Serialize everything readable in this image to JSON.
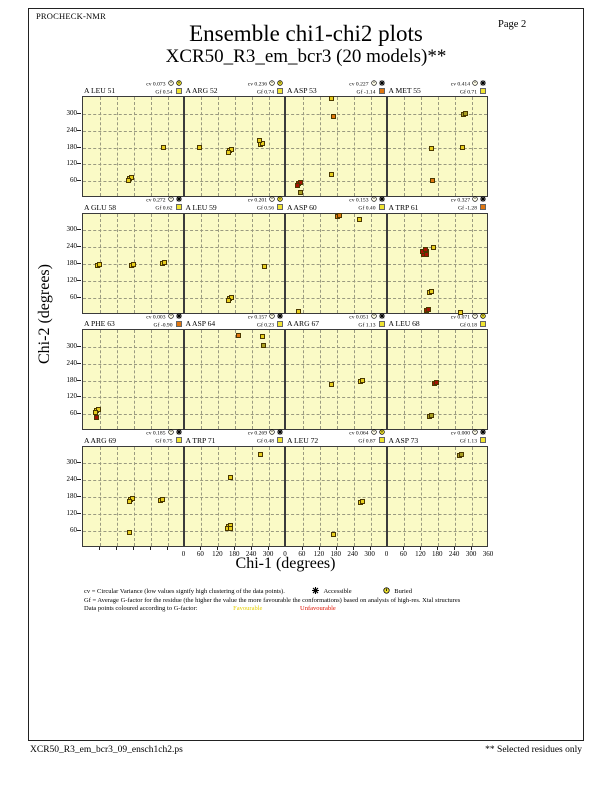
{
  "header": {
    "app_name": "PROCHECK-NMR",
    "title": "Ensemble chi1-chi2 plots",
    "subtitle": "XCR50_R3_em_bcr3 (20 models)**",
    "page_label": "Page  2"
  },
  "axes": {
    "x_title": "Chi-1 (degrees)",
    "y_title": "Chi-2 (degrees)",
    "x_ticks": [
      0,
      60,
      120,
      180,
      240,
      300,
      360
    ],
    "y_ticks": [
      60,
      120,
      180,
      240,
      300
    ],
    "x_range": [
      0,
      360
    ],
    "y_range": [
      0,
      360
    ],
    "grid_step": 60,
    "grid_style": "dashed"
  },
  "colors": {
    "plot_bg": "#fafac6",
    "favourable": "#e8cf1e",
    "olive": "#a9a023",
    "unfav_orange": "#e0760f",
    "unfav_red": "#a51204",
    "gf_square_favourable": "#f0e431",
    "gf_square_unfavourable": "#e0760f",
    "grid": "#9a9a80",
    "frame": "#3b3b3b"
  },
  "legend": {
    "line1": "cv = Circular Variance (low values signify high clustering of the data points).",
    "accessible_label": "Accessible",
    "buried_label": "Buried",
    "line2": "Gf = Average G-factor for the residue (the higher the value the more favourable the conformations) based on analysis of high-res. Xtal structures",
    "line3": "Data points coloured according to G-factor:",
    "favourable_label": "Favourable",
    "unfavourable_label": "Unfavourable"
  },
  "footer": {
    "left": "XCR50_R3_em_bcr3_09_ensch1ch2.ps",
    "right": "** Selected residues only"
  },
  "chart_data": [
    {
      "type": "scatter",
      "residue": "A LEU 51",
      "cv": "0.073",
      "gf": "0.54",
      "gf_status": "favourable",
      "access": "buried",
      "points": [
        [
          166,
          68,
          "y",
          3
        ],
        [
          286,
          179,
          "y",
          1
        ]
      ]
    },
    {
      "type": "scatter",
      "residue": "A ARG 52",
      "cv": "0.236",
      "gf": "0.74",
      "gf_status": "favourable",
      "access": "buried",
      "points": [
        [
          52,
          180,
          "y",
          1
        ],
        [
          159,
          170,
          "y",
          3
        ],
        [
          268,
          190,
          "y",
          2
        ],
        [
          266,
          205,
          "y",
          1
        ]
      ]
    },
    {
      "type": "scatter",
      "residue": "A ASP 53",
      "cv": "0.227",
      "gf": "-1.14",
      "gf_status": "unfavourable",
      "access": "accessible",
      "points": [
        [
          45,
          50,
          "r",
          3
        ],
        [
          53,
          20,
          "g",
          1
        ],
        [
          162,
          84,
          "y",
          1
        ],
        [
          168,
          290,
          "o",
          1
        ],
        [
          160,
          354,
          "y",
          1
        ]
      ]
    },
    {
      "type": "scatter",
      "residue": "A MET 55",
      "cv": "0.414",
      "gf": "0.71",
      "gf_status": "favourable",
      "access": "accessible",
      "points": [
        [
          270,
          296,
          "g",
          2
        ],
        [
          155,
          176,
          "y",
          1
        ],
        [
          265,
          179,
          "y",
          1
        ],
        [
          161,
          64,
          "o",
          1
        ]
      ]
    },
    {
      "type": "scatter",
      "residue": "A GLU 58",
      "cv": "0.272",
      "gf": "0.62",
      "gf_status": "favourable",
      "access": "accessible",
      "points": [
        [
          53,
          176,
          "y",
          2
        ],
        [
          172,
          176,
          "y",
          2
        ],
        [
          283,
          182,
          "y",
          2
        ]
      ]
    },
    {
      "type": "scatter",
      "residue": "A LEU 59",
      "cv": "0.201",
      "gf": "0.56",
      "gf_status": "buried",
      "access": "buried",
      "points": [
        [
          285,
          170,
          "y",
          1
        ],
        [
          161,
          57,
          "y",
          3
        ]
      ]
    },
    {
      "type": "scatter",
      "residue": "A ASP 60",
      "cv": "0.153",
      "gf": "0.40",
      "gf_status": "favourable",
      "access": "accessible",
      "points": [
        [
          184,
          349,
          "o",
          2
        ],
        [
          262,
          339,
          "y",
          1
        ],
        [
          43,
          10,
          "y",
          1
        ]
      ]
    },
    {
      "type": "scatter",
      "residue": "A TRP 61",
      "cv": "0.327",
      "gf": "-1.28",
      "gf_status": "unfavourable",
      "access": "accessible",
      "points": [
        [
          133,
          220,
          "r",
          6
        ],
        [
          163,
          240,
          "y",
          1
        ],
        [
          150,
          77,
          "y",
          2
        ],
        [
          140,
          16,
          "r",
          2
        ],
        [
          259,
          8,
          "y",
          1
        ]
      ]
    },
    {
      "type": "scatter",
      "residue": "A PHE 63",
      "cv": "0.003",
      "gf": "-0.90",
      "gf_status": "unfavourable",
      "access": "accessible",
      "points": [
        [
          48,
          74,
          "y",
          3
        ],
        [
          47,
          49,
          "r",
          1
        ]
      ]
    },
    {
      "type": "scatter",
      "residue": "A ASP 64",
      "cv": "0.157",
      "gf": "0.23",
      "gf_status": "favourable",
      "access": "accessible",
      "points": [
        [
          190,
          339,
          "o",
          1
        ],
        [
          277,
          337,
          "y",
          1
        ],
        [
          280,
          304,
          "g",
          1
        ]
      ]
    },
    {
      "type": "scatter",
      "residue": "A ARG 67",
      "cv": "0.051",
      "gf": "1.13",
      "gf_status": "favourable",
      "access": "accessible",
      "points": [
        [
          162,
          166,
          "y",
          1
        ],
        [
          264,
          176,
          "y",
          2
        ]
      ]
    },
    {
      "type": "scatter",
      "residue": "A LEU 68",
      "cv": "0.071",
      "gf": "0.18",
      "gf_status": "favourable",
      "access": "buried",
      "points": [
        [
          168,
          170,
          "r",
          2
        ],
        [
          150,
          53,
          "g",
          2
        ]
      ]
    },
    {
      "type": "scatter",
      "residue": "A ARG 69",
      "cv": "0.185",
      "gf": "0.75",
      "gf_status": "favourable",
      "access": "accessible",
      "points": [
        [
          170,
          171,
          "y",
          3
        ],
        [
          276,
          168,
          "y",
          2
        ],
        [
          166,
          53,
          "y",
          1
        ]
      ]
    },
    {
      "type": "scatter",
      "residue": "A TRP 71",
      "cv": "0.269",
      "gf": "0.48",
      "gf_status": "favourable",
      "access": "accessible",
      "points": [
        [
          268,
          331,
          "y",
          1
        ],
        [
          164,
          250,
          "y",
          1
        ],
        [
          157,
          74,
          "y",
          4
        ]
      ]
    },
    {
      "type": "scatter",
      "residue": "A LEU 72",
      "cv": "0.064",
      "gf": "0.87",
      "gf_status": "favourable",
      "access": "buried",
      "points": [
        [
          263,
          160,
          "y",
          2
        ],
        [
          168,
          47,
          "y",
          1
        ]
      ]
    },
    {
      "type": "scatter",
      "residue": "A ASP 73",
      "cv": "0.000",
      "gf": "1.13",
      "gf_status": "favourable",
      "access": "accessible",
      "points": [
        [
          257,
          328,
          "g",
          2
        ]
      ]
    }
  ]
}
